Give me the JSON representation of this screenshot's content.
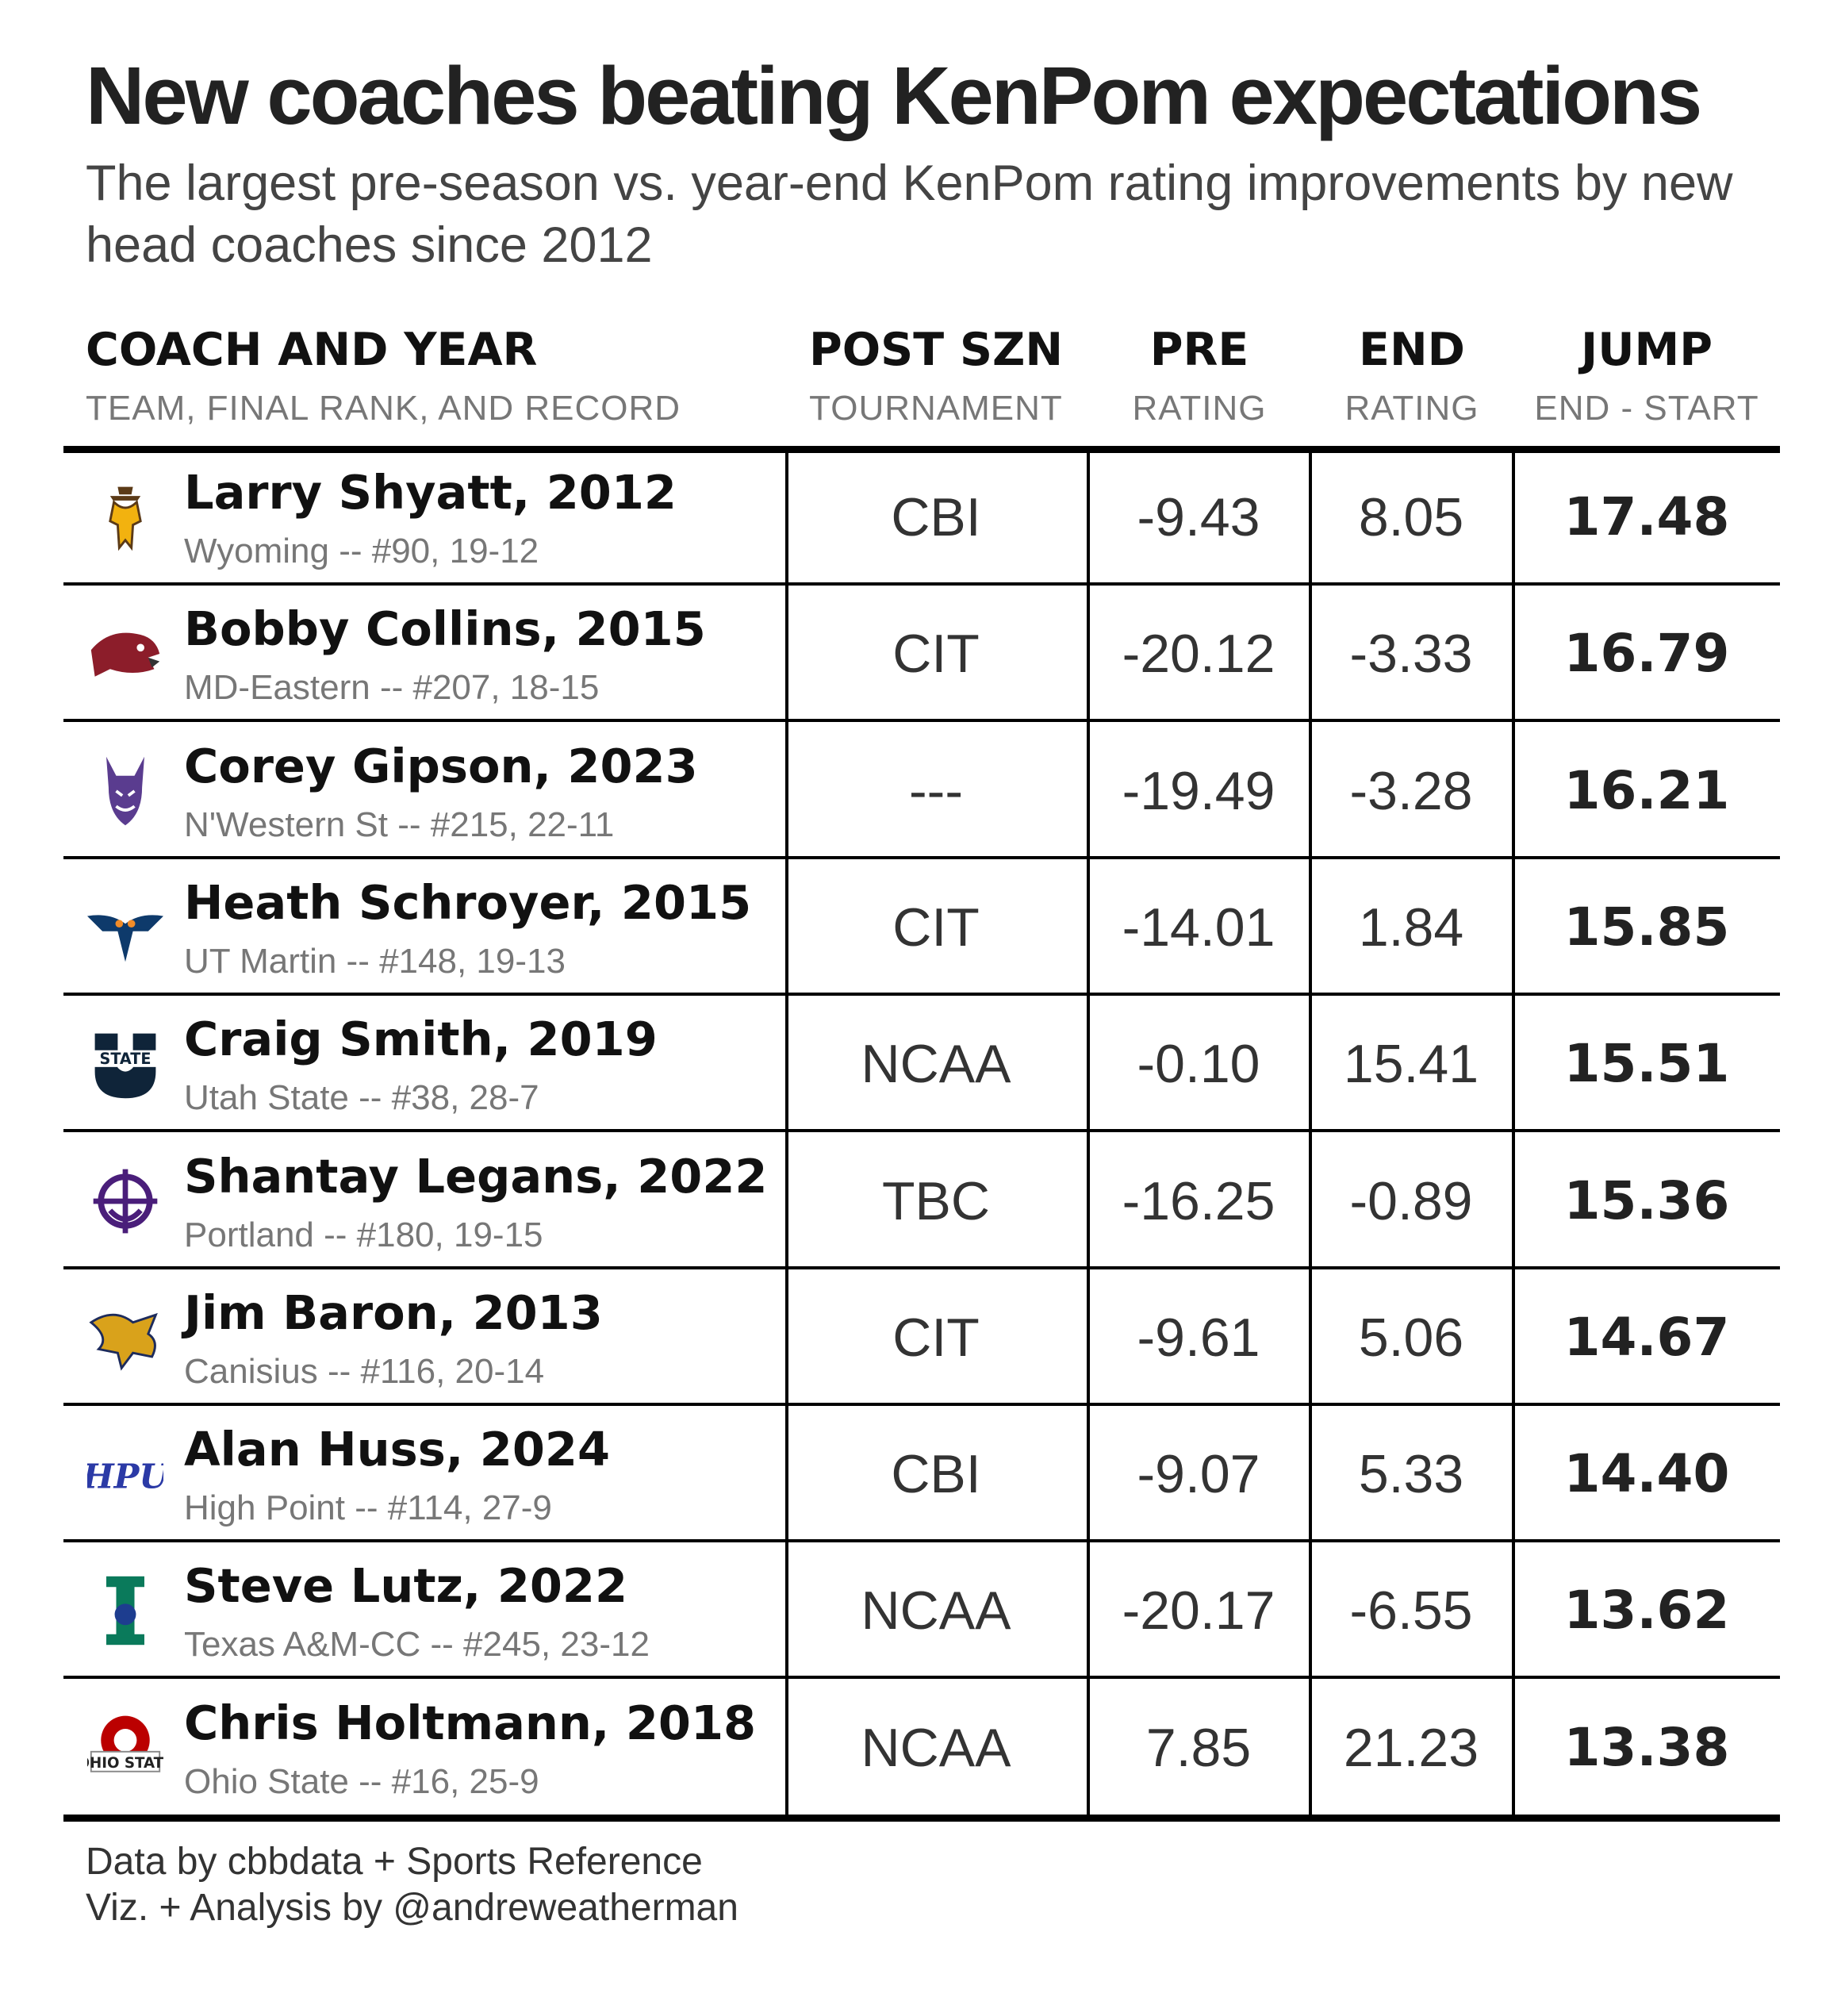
{
  "title": "New coaches beating KenPom expectations",
  "subtitle": "The largest pre-season vs. year-end KenPom rating improvements by new head coaches since 2012",
  "headers": [
    {
      "main": "COACH AND YEAR",
      "sub": "TEAM, FINAL RANK, AND RECORD"
    },
    {
      "main": "POST SZN",
      "sub": "TOURNAMENT"
    },
    {
      "main": "PRE",
      "sub": "RATING"
    },
    {
      "main": "END",
      "sub": "RATING"
    },
    {
      "main": "JUMP",
      "sub": "END - START"
    }
  ],
  "footer": {
    "line1": "Data by cbbdata + Sports Reference",
    "line2": "Viz. + Analysis by @andreweatherman"
  },
  "chart_data": {
    "type": "table",
    "columns": [
      "COACH AND YEAR",
      "POST SZN",
      "PRE",
      "END",
      "JUMP"
    ],
    "rows": [
      {
        "coach": "Larry Shyatt, 2012",
        "team": "Wyoming -- #90, 19-12",
        "post": "CBI",
        "pre": "-9.43",
        "end": "8.05",
        "jump": "17.48",
        "logo": "wyoming-cowboy-logo",
        "color": "#f2b20f"
      },
      {
        "coach": "Bobby Collins, 2015",
        "team": "MD-Eastern -- #207, 18-15",
        "post": "CIT",
        "pre": "-20.12",
        "end": "-3.33",
        "jump": "16.79",
        "logo": "hawk-head-logo",
        "color": "#8c1d2a"
      },
      {
        "coach": "Corey Gipson, 2023",
        "team": "N'Western St -- #215, 22-11",
        "post": "---",
        "pre": "-19.49",
        "end": "-3.28",
        "jump": "16.21",
        "logo": "demon-logo",
        "color": "#5a3c8f"
      },
      {
        "coach": "Heath Schroyer, 2015",
        "team": "UT Martin -- #148, 19-13",
        "post": "CIT",
        "pre": "-14.01",
        "end": "1.84",
        "jump": "15.85",
        "logo": "skyhawk-logo",
        "color": "#0e3a6b"
      },
      {
        "coach": "Craig Smith, 2019",
        "team": "Utah State -- #38, 28-7",
        "post": "NCAA",
        "pre": "-0.10",
        "end": "15.41",
        "jump": "15.51",
        "logo": "utah-state-u-logo",
        "color": "#0f2439"
      },
      {
        "coach": "Shantay Legans, 2022",
        "team": "Portland -- #180, 19-15",
        "post": "TBC",
        "pre": "-16.25",
        "end": "-0.89",
        "jump": "15.36",
        "logo": "anchor-wheel-logo",
        "color": "#4a1e7a"
      },
      {
        "coach": "Jim Baron, 2013",
        "team": "Canisius -- #116, 20-14",
        "post": "CIT",
        "pre": "-9.61",
        "end": "5.06",
        "jump": "14.67",
        "logo": "griffin-logo",
        "color": "#d9a21b"
      },
      {
        "coach": "Alan Huss, 2024",
        "team": "High Point -- #114, 27-9",
        "post": "CBI",
        "pre": "-9.07",
        "end": "5.33",
        "jump": "14.40",
        "logo": "hpu-script-logo",
        "color": "#2b3aa6"
      },
      {
        "coach": "Steve Lutz, 2022",
        "team": "Texas A&M-CC -- #245, 23-12",
        "post": "NCAA",
        "pre": "-20.17",
        "end": "-6.55",
        "jump": "13.62",
        "logo": "islanders-i-logo",
        "color": "#0a7a5b"
      },
      {
        "coach": "Chris Holtmann, 2018",
        "team": "Ohio State -- #16, 25-9",
        "post": "NCAA",
        "pre": "7.85",
        "end": "21.23",
        "jump": "13.38",
        "logo": "ohio-state-logo",
        "color": "#bb0000"
      }
    ]
  }
}
